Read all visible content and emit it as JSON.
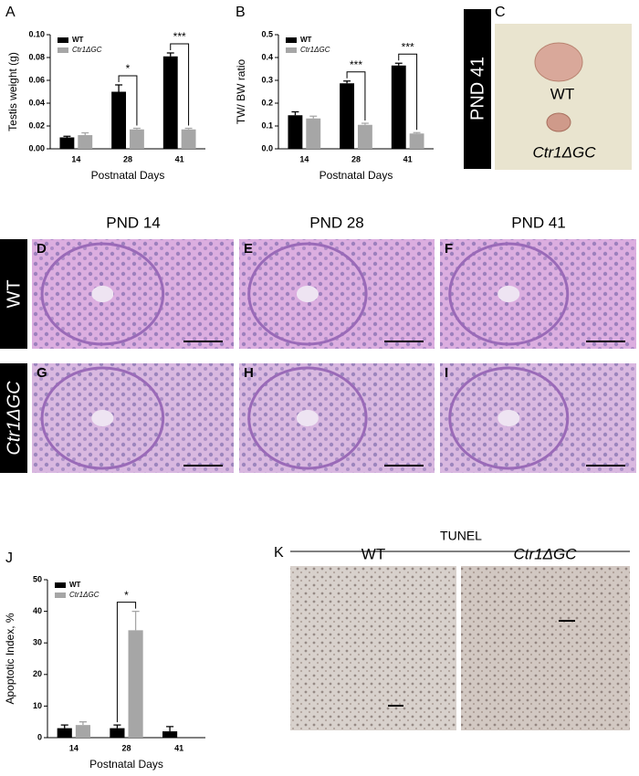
{
  "chart_data": [
    {
      "type": "bar",
      "label": "A",
      "y_label": "Testis weight (g)",
      "x_label": "Postnatal Days",
      "categories": [
        "14",
        "28",
        "41"
      ],
      "series": [
        {
          "name": "WT",
          "color": "#000000",
          "values": [
            0.01,
            0.05,
            0.081
          ],
          "errors": [
            0.001,
            0.006,
            0.003
          ]
        },
        {
          "name": "Ctr1ΔGC",
          "color": "#a6a6a6",
          "values": [
            0.012,
            0.017,
            0.017
          ],
          "errors": [
            0.002,
            0.001,
            0.001
          ]
        }
      ],
      "significance": [
        null,
        "*",
        "***"
      ],
      "ylim": [
        0,
        0.1
      ],
      "yticks": [
        {
          "value": 0,
          "label": "0.00"
        },
        {
          "value": 0.02,
          "label": "0.02"
        },
        {
          "value": 0.04,
          "label": "0.04"
        },
        {
          "value": 0.06,
          "label": "0.06"
        },
        {
          "value": 0.08,
          "label": "0.08"
        },
        {
          "value": 0.1,
          "label": "0.10"
        }
      ],
      "legend": "top-left"
    },
    {
      "type": "bar",
      "label": "B",
      "y_label": "TW/ BW ratio",
      "x_label": "Postnatal Days",
      "categories": [
        "14",
        "28",
        "41"
      ],
      "series": [
        {
          "name": "WT",
          "color": "#000000",
          "values": [
            0.147,
            0.287,
            0.365
          ],
          "errors": [
            0.015,
            0.01,
            0.01
          ]
        },
        {
          "name": "Ctr1ΔGC",
          "color": "#a6a6a6",
          "values": [
            0.133,
            0.105,
            0.067
          ],
          "errors": [
            0.01,
            0.007,
            0.004
          ]
        }
      ],
      "significance": [
        null,
        "***",
        "***"
      ],
      "ylim": [
        0,
        0.5
      ],
      "yticks": [
        {
          "value": 0,
          "label": "0.0"
        },
        0.1,
        0.2,
        0.3,
        0.4,
        0.5
      ],
      "legend": "top-left"
    },
    {
      "type": "bar",
      "label": "J",
      "y_label": "Apoptotic Index, %",
      "x_label": "Postnatal Days",
      "categories": [
        "14",
        "28",
        "41"
      ],
      "series": [
        {
          "name": "WT",
          "color": "#000000",
          "values": [
            3,
            3,
            2
          ],
          "errors": [
            1,
            1,
            1.5
          ]
        },
        {
          "name": "Ctr1ΔGC",
          "color": "#a6a6a6",
          "values": [
            4,
            34,
            null
          ],
          "errors": [
            1,
            6,
            null
          ]
        }
      ],
      "significance": [
        null,
        "*",
        null
      ],
      "ylim": [
        0,
        50
      ],
      "yticks": [
        0,
        10,
        20,
        30,
        40,
        50
      ],
      "legend": "top-left"
    }
  ],
  "panel_c": {
    "letter": "C",
    "label": "PND 41",
    "wt": "WT",
    "mutant": "Ctr1ΔGC"
  },
  "histology": {
    "columns": [
      "PND 14",
      "PND 28",
      "PND 41"
    ],
    "rows": [
      "WT",
      "Ctr1ΔGC"
    ],
    "letters": [
      "D",
      "E",
      "F",
      "G",
      "H",
      "I"
    ]
  },
  "panel_k": {
    "letter": "K",
    "title": "TUNEL",
    "labels": [
      "WT",
      "Ctr1ΔGC"
    ]
  }
}
